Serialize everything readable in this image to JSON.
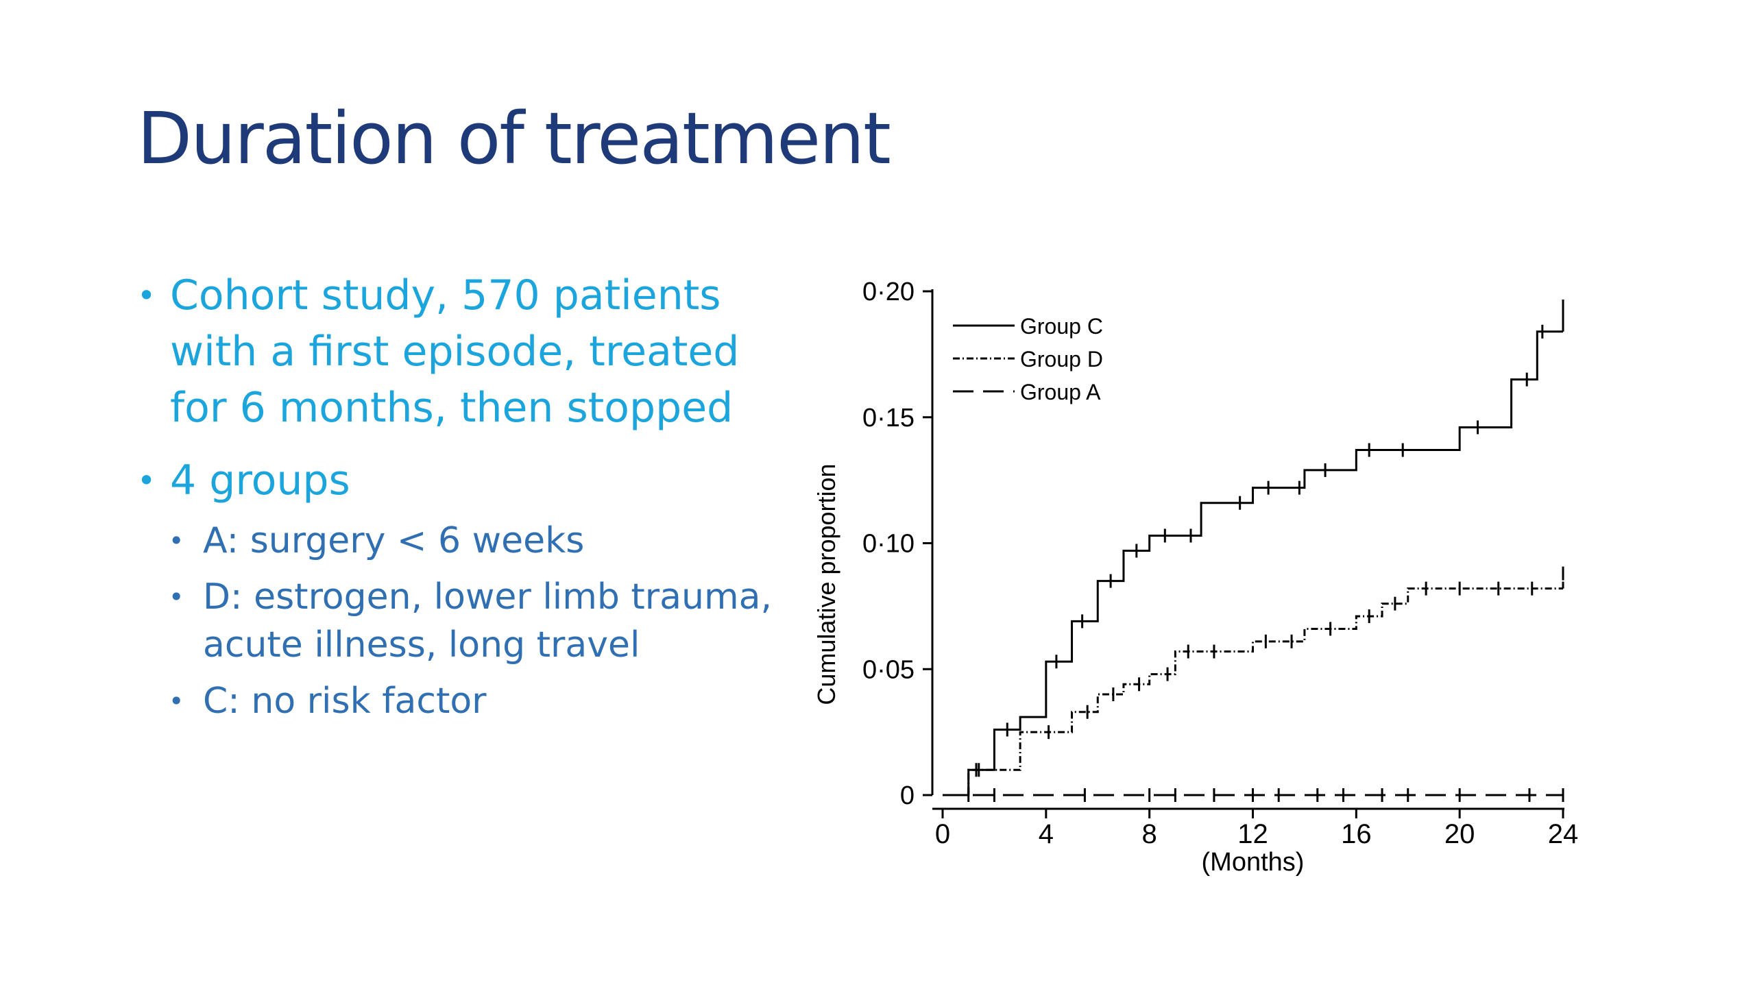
{
  "slide": {
    "title": "Duration of treatment",
    "bullets": [
      {
        "text": "Cohort study, 570 patients with a first episode, treated for 6 months, then stopped"
      },
      {
        "text": "4 groups",
        "sub": [
          "A: surgery < 6 weeks",
          "D: estrogen, lower limb trauma, acute illness, long travel",
          "C: no risk factor"
        ]
      }
    ]
  },
  "colors": {
    "title": "#1f3a78",
    "bullet_level1": "#1ba5dc",
    "bullet_level2": "#2f6fb2",
    "plot": "#000000"
  },
  "chart_data": {
    "type": "line",
    "subtype": "kaplan-meier step plot",
    "xlabel": "(Months)",
    "ylabel": "Cumulative proportion",
    "xlim": [
      0,
      24
    ],
    "ylim": [
      0,
      0.2
    ],
    "xticks": [
      0,
      4,
      8,
      12,
      16,
      20,
      24
    ],
    "yticks": [
      0,
      0.05,
      0.1,
      0.15,
      0.2
    ],
    "ytick_labels": [
      "0",
      "0·05",
      "0·10",
      "0·15",
      "0·20"
    ],
    "legend_position": "top-left",
    "grid": false,
    "series": [
      {
        "name": "Group C",
        "style": "solid",
        "x": [
          0,
          1,
          2,
          3,
          4,
          5,
          6,
          7,
          8,
          10,
          12,
          14,
          16,
          20,
          22,
          23,
          24
        ],
        "y": [
          0,
          0.01,
          0.026,
          0.031,
          0.053,
          0.069,
          0.085,
          0.097,
          0.103,
          0.116,
          0.122,
          0.129,
          0.137,
          0.146,
          0.165,
          0.184,
          0.194
        ],
        "censor_x": [
          1.3,
          2.5,
          4.4,
          5.4,
          6.5,
          7.5,
          8.6,
          9.6,
          11.5,
          12.6,
          13.8,
          14.8,
          16.5,
          17.8,
          20.7,
          22.6,
          23.2,
          24
        ]
      },
      {
        "name": "Group D",
        "style": "dash-dot",
        "x": [
          0,
          1,
          3,
          5,
          6,
          7,
          8,
          9,
          12,
          14,
          16,
          17,
          18,
          24
        ],
        "y": [
          0,
          0.01,
          0.025,
          0.033,
          0.04,
          0.044,
          0.048,
          0.057,
          0.061,
          0.066,
          0.071,
          0.076,
          0.082,
          0.088
        ],
        "censor_x": [
          1.4,
          4.1,
          5.6,
          6.6,
          7.6,
          8.7,
          9.5,
          10.5,
          12.5,
          13.5,
          15.0,
          16.5,
          17.5,
          18.7,
          20.0,
          21.5,
          22.8,
          24
        ]
      },
      {
        "name": "Group A",
        "style": "long-dash",
        "x": [
          0,
          24
        ],
        "y": [
          0,
          0
        ],
        "censor_x": [
          1.0,
          2.0,
          5.5,
          8.0,
          9.0,
          10.5,
          12.0,
          13.0,
          14.5,
          15.5,
          17.0,
          18.0,
          20.0,
          22.7,
          24.0
        ]
      }
    ]
  }
}
